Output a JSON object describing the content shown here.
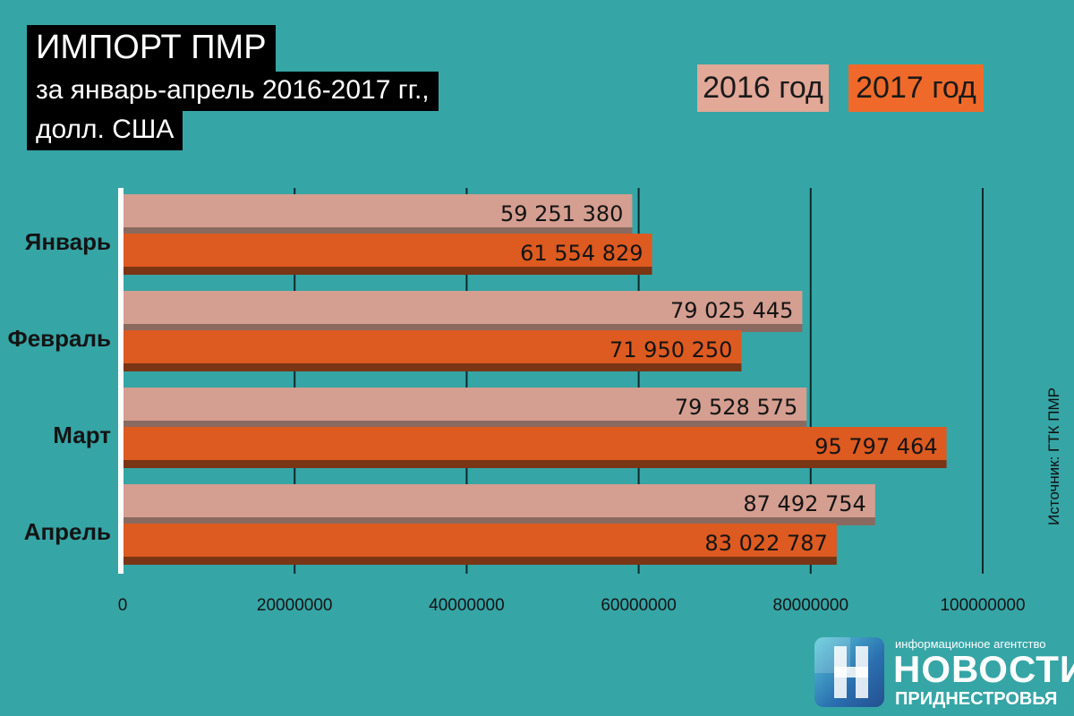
{
  "title": {
    "line1": "ИМПОРТ ПМР",
    "line2": "за январь-апрель 2016-2017 гг.,",
    "line3": "долл. США"
  },
  "legend": [
    {
      "label": "2016 год",
      "color": "#e2a898"
    },
    {
      "label": "2017 год",
      "color": "#ef6a2a"
    }
  ],
  "source": "Источник: ГТК ПМР",
  "logo": {
    "small": "информационное агентство",
    "big": "НОВОСТИ",
    "sub": "ПРИДНЕСТРОВЬЯ"
  },
  "chart_data": {
    "type": "bar",
    "orientation": "horizontal",
    "categories": [
      "Январь",
      "Февраль",
      "Март",
      "Апрель"
    ],
    "series": [
      {
        "name": "2016 год",
        "values": [
          59251380,
          79025445,
          79528575,
          87492754
        ],
        "labels": [
          "59 251 380",
          "79 025 445",
          "79 528 575",
          "87 492 754"
        ],
        "color": "#d49e90",
        "shadow": "#8a6a60"
      },
      {
        "name": "2017 год",
        "values": [
          61554829,
          71950250,
          95797464,
          83022787
        ],
        "labels": [
          "61 554 829",
          "71 950 250",
          "95 797 464",
          "83 022 787"
        ],
        "color": "#dd5a20",
        "shadow": "#7a3514"
      }
    ],
    "xlim": [
      0,
      100000000
    ],
    "xticks": [
      0,
      20000000,
      40000000,
      60000000,
      80000000,
      100000000
    ],
    "xtick_labels": [
      "0",
      "20000000",
      "40000000",
      "60000000",
      "80000000",
      "100000000"
    ],
    "grid": true,
    "legend_position": "top-right"
  }
}
